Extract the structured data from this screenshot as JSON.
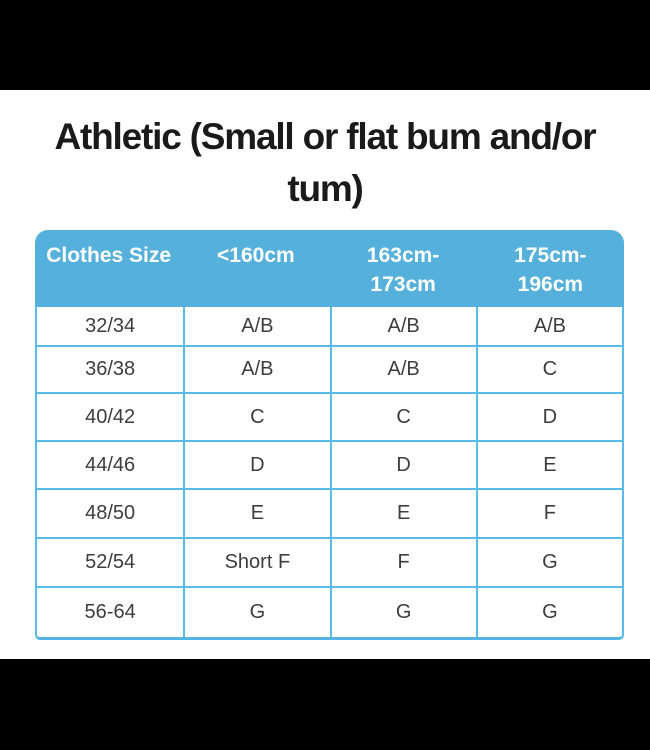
{
  "colors": {
    "page_bg": "#000000",
    "panel_bg": "#FFFFFF",
    "header_bg": "#55B1DB",
    "header_text": "#FFFFFF",
    "border": "#5ABAEA",
    "title_text": "#1A1A1A",
    "body_text": "#3D3D3D"
  },
  "chart_data": {
    "type": "table",
    "title": "Athletic (Small or flat bum and/or tum)",
    "title_lines": [
      "Athletic (Small or flat bum and/or",
      "tum)"
    ],
    "columns": [
      "Clothes Size",
      "<160cm",
      "163cm-173cm",
      "175cm-196cm"
    ],
    "column_lines": [
      [
        "Clothes Size",
        ""
      ],
      [
        "<160cm",
        ""
      ],
      [
        "163cm-",
        "173cm"
      ],
      [
        "175cm-",
        "196cm"
      ]
    ],
    "rows": [
      [
        "32/34",
        "A/B",
        "A/B",
        "A/B"
      ],
      [
        "36/38",
        "A/B",
        "A/B",
        "C"
      ],
      [
        "40/42",
        "C",
        "C",
        "D"
      ],
      [
        "44/46",
        "D",
        "D",
        "E"
      ],
      [
        "48/50",
        "E",
        "E",
        "F"
      ],
      [
        "52/54",
        "Short F",
        "F",
        "G"
      ],
      [
        "56-64",
        "G",
        "G",
        "G"
      ]
    ]
  }
}
